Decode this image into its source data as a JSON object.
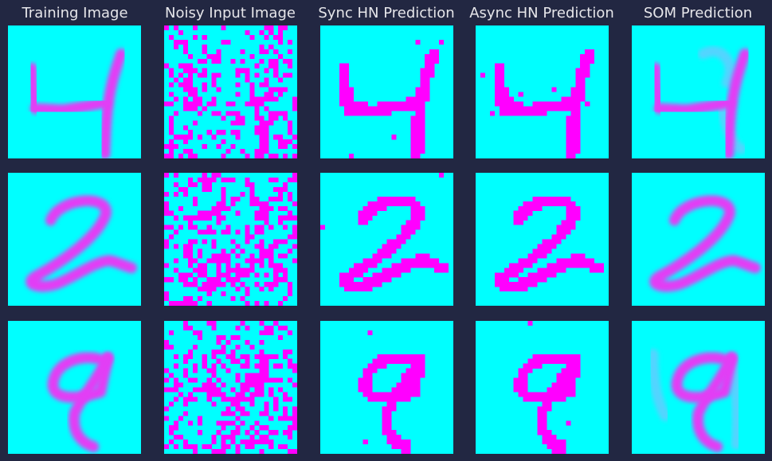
{
  "figure": {
    "columns": [
      {
        "title": "Training Image",
        "style": "smooth"
      },
      {
        "title": "Noisy Input Image",
        "style": "noise"
      },
      {
        "title": "Sync HN Prediction",
        "style": "binary"
      },
      {
        "title": "Async HN Prediction",
        "style": "binary"
      },
      {
        "title": "SOM Prediction",
        "style": "ghost"
      }
    ],
    "rows": [
      {
        "digit": "4"
      },
      {
        "digit": "2"
      },
      {
        "digit": "9"
      }
    ]
  },
  "colors": {
    "background": "#222742",
    "panel_background": "#00ffff",
    "ink": "#ff00ff",
    "smooth_ink": "#e23cf5",
    "ghost_ink": "#6fc6ff",
    "title_text": "#e6e6ea"
  }
}
